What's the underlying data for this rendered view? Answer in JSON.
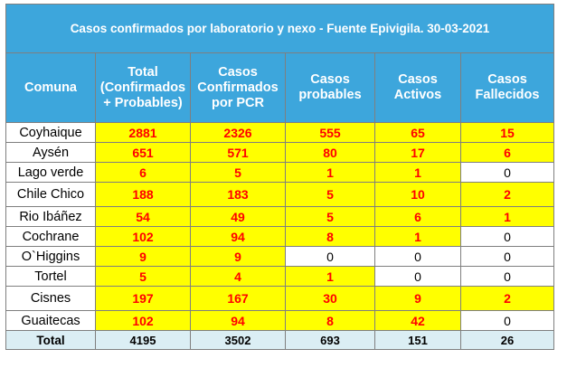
{
  "title": "Casos confirmados por laboratorio y nexo - Fuente Epivigila. 30-03-2021",
  "headers": [
    "Comuna",
    "Total (Confirmados + Probables)",
    "Casos Confirmados por PCR",
    "Casos probables",
    "Casos Activos",
    "Casos Fallecidos"
  ],
  "colors": {
    "header_bg": "#3da6dc",
    "highlight_bg": "#ffff00",
    "highlight_text": "#ff0000",
    "total_bg": "#dbeef4"
  },
  "rows": [
    {
      "comuna": "Coyhaique",
      "values": [
        "2881",
        "2326",
        "555",
        "65",
        "15"
      ],
      "highlight": [
        true,
        true,
        true,
        true,
        true
      ]
    },
    {
      "comuna": "Aysén",
      "values": [
        "651",
        "571",
        "80",
        "17",
        "6"
      ],
      "highlight": [
        true,
        true,
        true,
        true,
        true
      ]
    },
    {
      "comuna": "Lago verde",
      "values": [
        "6",
        "5",
        "1",
        "1",
        "0"
      ],
      "highlight": [
        true,
        true,
        true,
        true,
        false
      ]
    },
    {
      "comuna": "Chile Chico",
      "values": [
        "188",
        "183",
        "5",
        "10",
        "2"
      ],
      "highlight": [
        true,
        true,
        true,
        true,
        true
      ]
    },
    {
      "comuna": "Rio Ibáñez",
      "values": [
        "54",
        "49",
        "5",
        "6",
        "1"
      ],
      "highlight": [
        true,
        true,
        true,
        true,
        true
      ]
    },
    {
      "comuna": "Cochrane",
      "values": [
        "102",
        "94",
        "8",
        "1",
        "0"
      ],
      "highlight": [
        true,
        true,
        true,
        true,
        false
      ]
    },
    {
      "comuna": "O`Higgins",
      "values": [
        "9",
        "9",
        "0",
        "0",
        "0"
      ],
      "highlight": [
        true,
        true,
        false,
        false,
        false
      ]
    },
    {
      "comuna": "Tortel",
      "values": [
        "5",
        "4",
        "1",
        "0",
        "0"
      ],
      "highlight": [
        true,
        true,
        true,
        false,
        false
      ]
    },
    {
      "comuna": "Cisnes",
      "values": [
        "197",
        "167",
        "30",
        "9",
        "2"
      ],
      "highlight": [
        true,
        true,
        true,
        true,
        true
      ]
    },
    {
      "comuna": "Guaitecas",
      "values": [
        "102",
        "94",
        "8",
        "42",
        "0"
      ],
      "highlight": [
        true,
        true,
        true,
        true,
        false
      ]
    }
  ],
  "total": {
    "label": "Total",
    "values": [
      "4195",
      "3502",
      "693",
      "151",
      "26"
    ]
  }
}
